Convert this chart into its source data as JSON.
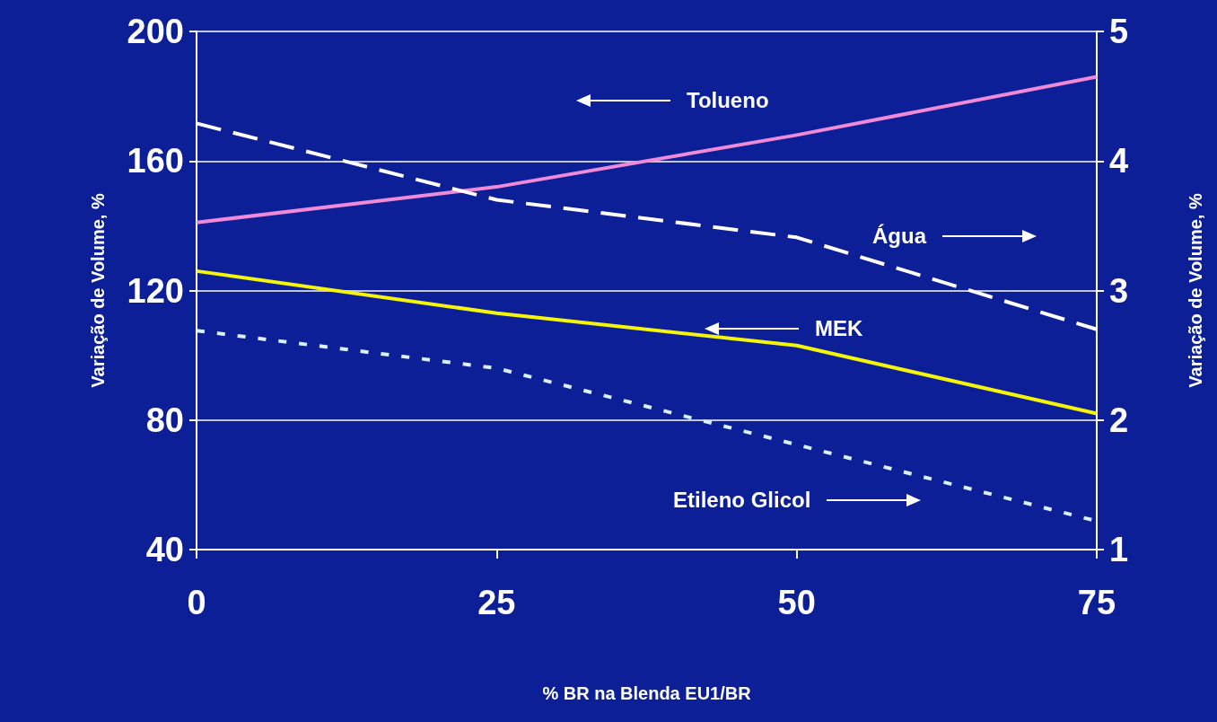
{
  "chart_data": {
    "type": "line",
    "xlabel": "% BR na Blenda EU1/BR",
    "ylabel": "Variação de Volume, %",
    "y2label": "Variação de Volume, %",
    "x": [
      0,
      25,
      50,
      75
    ],
    "xlim": [
      0,
      75
    ],
    "xticks": [
      0,
      25,
      50,
      75
    ],
    "ylim": [
      40,
      200
    ],
    "yticks": [
      40,
      80,
      120,
      160,
      200
    ],
    "y2lim": [
      1,
      5
    ],
    "y2ticks": [
      1,
      2,
      3,
      4,
      5
    ],
    "grid": "y",
    "marker": "none",
    "annotations": [
      "Tolueno",
      "Água",
      "MEK",
      "Etileno Glicol"
    ],
    "series": [
      {
        "color": "#f08ad8",
        "line_style": "solid",
        "values": [
          141,
          152,
          168,
          186
        ]
      },
      {
        "color": "#ffffff",
        "line_style": "dashed",
        "axis": "y2",
        "values": [
          4.29,
          3.7,
          3.41,
          2.7
        ]
      },
      {
        "color": "#f5f50a",
        "line_style": "solid",
        "values": [
          126,
          113,
          103,
          82
        ]
      },
      {
        "color": "#d8f0ff",
        "line_style": "dotted",
        "axis": "y2",
        "values": [
          2.69,
          2.4,
          1.81,
          1.22
        ]
      }
    ]
  }
}
